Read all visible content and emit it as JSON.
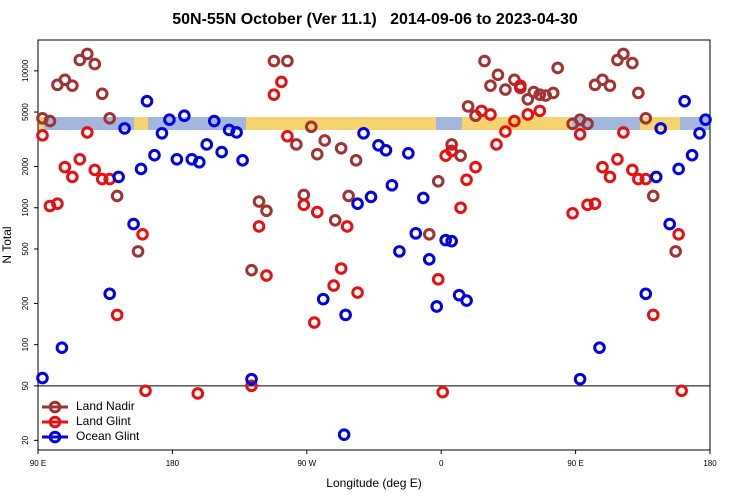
{
  "chart_data": {
    "type": "scatter",
    "title": "50N-55N October (Ver 11.1)   2014-09-06 to 2023-04-30",
    "x_label": "Longitude (deg E)",
    "y_label": "N Total",
    "log_y": true,
    "legend": "lower left",
    "reference_line": 50,
    "xlim": [
      90,
      540
    ],
    "xticks": [
      {
        "value": 90,
        "label": "90 E"
      },
      180,
      {
        "value": 270,
        "label": "90 W"
      },
      {
        "value": 360,
        "label": "0"
      },
      {
        "value": 450,
        "label": "90 E"
      },
      {
        "value": 540,
        "label": "180"
      }
    ],
    "ylim": [
      17,
      16800
    ],
    "yticks": [
      20,
      50,
      100,
      200,
      500,
      1000,
      2000,
      5000,
      10000
    ],
    "series": [
      {
        "name": "Land Nadir",
        "color": "#a03232",
        "x": [
          93,
          98,
          103,
          108,
          113,
          118,
          123,
          128,
          133,
          138,
          143,
          157,
          233,
          238,
          243,
          248,
          257,
          263,
          268,
          273,
          277,
          282,
          289,
          293,
          298,
          303,
          352,
          358,
          367,
          373,
          378,
          383,
          389,
          393,
          398,
          403,
          409,
          413,
          418,
          422,
          426,
          430,
          435,
          438,
          448,
          453,
          458,
          463,
          468,
          473,
          478,
          482,
          488,
          492,
          497,
          502,
          517
        ],
        "values": [
          4500,
          4300,
          7900,
          8600,
          7800,
          12000,
          13300,
          11200,
          6800,
          4500,
          1220,
          480,
          350,
          1110,
          950,
          11800,
          11800,
          2900,
          1240,
          3900,
          2460,
          3100,
          810,
          2720,
          1220,
          2220,
          640,
          1560,
          2900,
          2400,
          5500,
          4700,
          11800,
          7800,
          9350,
          7300,
          8600,
          7500,
          6200,
          7000,
          6700,
          6600,
          6900,
          10500,
          4100,
          4400,
          4100,
          7900,
          8600,
          7800,
          12000,
          13300,
          11400,
          6900,
          4500,
          1220,
          480
        ]
      },
      {
        "name": "Land Glint",
        "color": "#e81010",
        "x": [
          93,
          98,
          103,
          108,
          113,
          118,
          123,
          128,
          133,
          138,
          143,
          160,
          162,
          197,
          233,
          238,
          243,
          248,
          253,
          257,
          268,
          277,
          275,
          288,
          293,
          297,
          304,
          358,
          361,
          363,
          367,
          373,
          377,
          383,
          387,
          393,
          397,
          403,
          409,
          413,
          418,
          426,
          448,
          453,
          458,
          463,
          468,
          473,
          478,
          482,
          488,
          492,
          497,
          502,
          519,
          521
        ],
        "values": [
          3380,
          1030,
          1070,
          1980,
          1680,
          2260,
          3550,
          1890,
          1620,
          1620,
          165,
          640,
          46,
          44,
          50,
          730,
          320,
          6700,
          8300,
          3330,
          1050,
          930,
          145,
          270,
          360,
          730,
          240,
          300,
          45,
          2400,
          2600,
          1000,
          1600,
          1980,
          5100,
          4800,
          2900,
          3600,
          4300,
          7800,
          4800,
          5100,
          910,
          3440,
          1050,
          1070,
          1980,
          1680,
          2260,
          3550,
          1890,
          1620,
          1620,
          165,
          640,
          46
        ]
      },
      {
        "name": "Ocean Glint",
        "color": "#0000e0",
        "x": [
          93,
          106,
          138,
          144,
          148,
          154,
          159,
          163,
          168,
          173,
          178,
          183,
          188,
          193,
          198,
          203,
          208,
          213,
          218,
          223,
          227,
          233,
          281,
          296,
          295,
          304,
          308,
          313,
          318,
          323,
          327,
          332,
          338,
          343,
          348,
          352,
          357,
          363,
          367,
          372,
          377,
          453,
          466,
          497,
          504,
          507,
          513,
          519,
          523,
          528,
          533,
          537
        ],
        "values": [
          57,
          95,
          235,
          1680,
          3800,
          760,
          1920,
          6000,
          2420,
          3500,
          4400,
          2260,
          4700,
          2260,
          2150,
          2900,
          4300,
          2550,
          3700,
          3550,
          2220,
          56,
          215,
          165,
          22,
          1070,
          3500,
          1200,
          2860,
          2630,
          1460,
          480,
          2500,
          650,
          1180,
          420,
          190,
          580,
          570,
          230,
          210,
          56,
          95,
          235,
          1680,
          3800,
          760,
          1920,
          6000,
          2420,
          3500,
          4400
        ]
      }
    ]
  }
}
